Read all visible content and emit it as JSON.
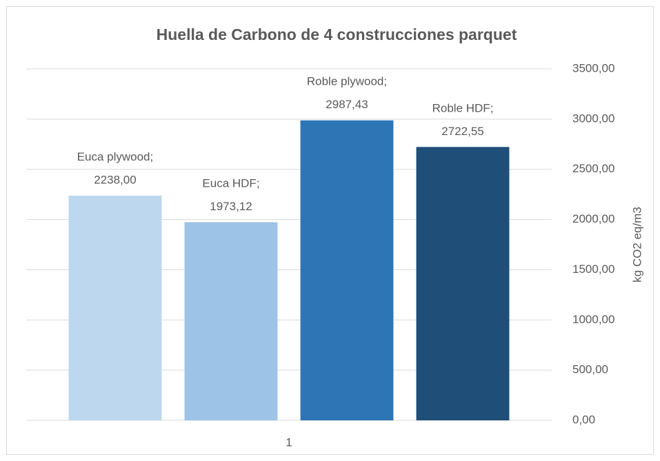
{
  "chart_data": {
    "type": "bar",
    "title": "Huella de Carbono de 4 construcciones parquet",
    "categories": [
      "1"
    ],
    "y_axis_label": "kg CO2 eq/m3",
    "y_axis_side": "right",
    "data_label_separator": ";",
    "series": [
      {
        "name": "Euca plywood",
        "color": "#BDD7EE",
        "values": [
          2238.0
        ],
        "value_labels": [
          "2238,00"
        ]
      },
      {
        "name": "Euca HDF",
        "color": "#9DC3E6",
        "values": [
          1973.12
        ],
        "value_labels": [
          "1973,12"
        ]
      },
      {
        "name": "Roble plywood",
        "color": "#2E75B6",
        "values": [
          2987.43
        ],
        "value_labels": [
          "2987,43"
        ]
      },
      {
        "name": "Roble HDF",
        "color": "#1F4E79",
        "values": [
          2722.55
        ],
        "value_labels": [
          "2722,55"
        ]
      }
    ],
    "ylim": [
      0,
      3500
    ],
    "yticks": [
      {
        "value": 0,
        "label": "0,00"
      },
      {
        "value": 500,
        "label": "500,00"
      },
      {
        "value": 1000,
        "label": "1000,00"
      },
      {
        "value": 1500,
        "label": "1500,00"
      },
      {
        "value": 2000,
        "label": "2000,00"
      },
      {
        "value": 2500,
        "label": "2500,00"
      },
      {
        "value": 3000,
        "label": "3000,00"
      },
      {
        "value": 3500,
        "label": "3500,00"
      }
    ],
    "grid": true
  }
}
